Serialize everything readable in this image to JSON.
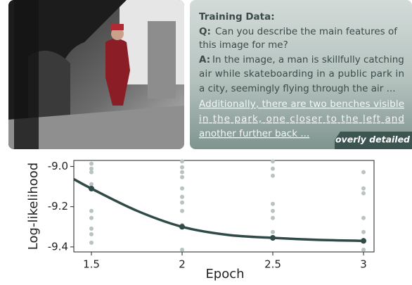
{
  "panel": {
    "heading": "Training Data:",
    "q_label": "Q:",
    "question_lines": [
      "Can you describe the main features of",
      "this image for me?"
    ],
    "a_label": "A:",
    "answer_lines": [
      "In the image, a man is skillfully catching",
      "air while skateboarding in a public park in",
      "a city, seemingly flying through the air ..."
    ],
    "extra_lines": [
      "Additionally, there are two benches visible",
      "in the park, one closer to the left and",
      "another further back ..."
    ],
    "badge": "overly detailed"
  },
  "chart_data": {
    "type": "line",
    "x_label": "Epoch",
    "y_label": "Log-likelihood",
    "xlim": [
      1.403,
      3.058
    ],
    "ylim": [
      -9.425,
      -8.97
    ],
    "xticks": [
      1.5,
      2,
      2.5,
      3
    ],
    "yticks": [
      {
        "value": -9.0,
        "label": "-9.0"
      },
      {
        "value": -9.2,
        "label": "-9.2"
      },
      {
        "value": -9.4,
        "label": "-9.4"
      }
    ],
    "series": [
      {
        "type": "line",
        "color": "#2f4a47",
        "x": [
          1.403,
          1.5,
          1.75,
          2,
          2.25,
          2.5,
          2.75,
          3
        ],
        "values": [
          -9.063,
          -9.11,
          -9.22,
          -9.3,
          -9.34,
          -9.355,
          -9.365,
          -9.37
        ]
      },
      {
        "type": "scatter",
        "color": "#2f4a47",
        "x": [
          1.5,
          2,
          2.5,
          3
        ],
        "values": [
          -9.11,
          -9.3,
          -9.355,
          -9.37
        ]
      },
      {
        "type": "scatter",
        "color": "#b9c4c1",
        "x": [
          1.5,
          1.5,
          1.5,
          1.5,
          1.5,
          1.5,
          1.5,
          1.5,
          1.5,
          2,
          2,
          2,
          2,
          2,
          2,
          2,
          2,
          2,
          2,
          2.5,
          2.5,
          2.5,
          2.5,
          2.5,
          2.5,
          2.5,
          3,
          3,
          3,
          3,
          3,
          3
        ],
        "values": [
          -8.986,
          -9.011,
          -9.028,
          -9.088,
          -9.221,
          -9.256,
          -9.309,
          -9.337,
          -9.379,
          -8.975,
          -9.004,
          -9.028,
          -9.053,
          -9.109,
          -9.151,
          -9.179,
          -9.221,
          -9.291,
          -9.414,
          -8.975,
          -9.011,
          -9.046,
          -9.186,
          -9.221,
          -9.256,
          -9.326,
          -9.028,
          -9.109,
          -9.133,
          -9.256,
          -9.326,
          -9.414
        ]
      }
    ]
  }
}
